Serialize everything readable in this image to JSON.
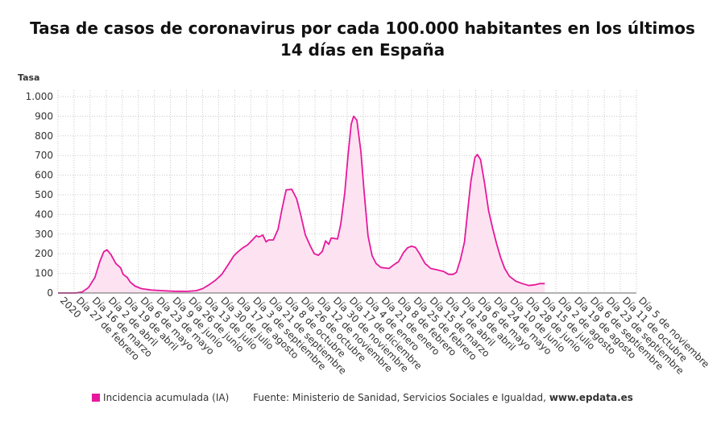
{
  "chart_data": {
    "type": "area",
    "title": "Tasa de casos de coronavirus por cada 100.000 habitantes en los últimos 14 días en España",
    "ylabel": "Tasa",
    "xlabel": "",
    "ylim": [
      0,
      1000
    ],
    "yticks": [
      0,
      100,
      200,
      300,
      400,
      500,
      600,
      700,
      800,
      900,
      1000
    ],
    "ytick_labels": [
      "0",
      "100",
      "200",
      "300",
      "400",
      "500",
      "600",
      "700",
      "800",
      "900",
      "1.000"
    ],
    "grid": true,
    "legend_position": "bottom",
    "x_tick_labels": [
      "2020",
      "Día 27 de febrero",
      "Día 16 de marzo",
      "Día 2 de abril",
      "Día 19 de abril",
      "Día 6 de mayo",
      "Día 23 de mayo",
      "Día 9 de junio",
      "Día 26 de junio",
      "Día 13 de julio",
      "Día 30 de julio",
      "Día 17 de agosto",
      "Día 3 de septiembre",
      "Día 21 de septiembre",
      "Día 8 de octubre",
      "Día 26 de octubre",
      "Día 12 de noviembre",
      "Día 30 de noviembre",
      "Día 17 de diciembre",
      "Día 4 de enero",
      "Día 21 de enero",
      "Día 8 de febrero",
      "Día 25 de febrero",
      "Día 15 de marzo",
      "Día 1 de abril",
      "Día 19 de abril",
      "Día 6 de mayo",
      "Día 24 de mayo",
      "Día 10 de junio",
      "Día 28 de junio",
      "Día 15 de julio",
      "Día 2 de agosto",
      "Día 19 de agosto",
      "Día 6 de septiembre",
      "Día 23 de septiembre",
      "Día 11 de octubre",
      "Día 5 de noviembre"
    ],
    "series": [
      {
        "name": "Incidencia acumulada (IA)",
        "color": "#e6199c",
        "fill": "#fde3f2",
        "values": [
          [
            0,
            0
          ],
          [
            1.1,
            0
          ],
          [
            1.5,
            5
          ],
          [
            1.9,
            28
          ],
          [
            2.3,
            80
          ],
          [
            2.6,
            160
          ],
          [
            2.85,
            210
          ],
          [
            3.05,
            220
          ],
          [
            3.3,
            195
          ],
          [
            3.6,
            150
          ],
          [
            3.9,
            128
          ],
          [
            4.05,
            95
          ],
          [
            4.3,
            80
          ],
          [
            4.5,
            55
          ],
          [
            4.8,
            35
          ],
          [
            5.2,
            22
          ],
          [
            5.8,
            15
          ],
          [
            6.5,
            12
          ],
          [
            7.2,
            9
          ],
          [
            8.0,
            8
          ],
          [
            8.6,
            12
          ],
          [
            9.0,
            22
          ],
          [
            9.4,
            42
          ],
          [
            9.8,
            65
          ],
          [
            10.2,
            95
          ],
          [
            10.6,
            145
          ],
          [
            10.95,
            190
          ],
          [
            11.2,
            210
          ],
          [
            11.5,
            230
          ],
          [
            11.8,
            245
          ],
          [
            12.1,
            270
          ],
          [
            12.35,
            292
          ],
          [
            12.5,
            285
          ],
          [
            12.75,
            295
          ],
          [
            12.95,
            260
          ],
          [
            13.1,
            270
          ],
          [
            13.4,
            270
          ],
          [
            13.7,
            325
          ],
          [
            13.95,
            430
          ],
          [
            14.2,
            525
          ],
          [
            14.55,
            528
          ],
          [
            14.85,
            480
          ],
          [
            15.1,
            400
          ],
          [
            15.4,
            295
          ],
          [
            15.7,
            240
          ],
          [
            15.95,
            200
          ],
          [
            16.2,
            192
          ],
          [
            16.45,
            212
          ],
          [
            16.65,
            265
          ],
          [
            16.85,
            248
          ],
          [
            17.0,
            280
          ],
          [
            17.4,
            275
          ],
          [
            17.6,
            350
          ],
          [
            17.85,
            510
          ],
          [
            18.05,
            700
          ],
          [
            18.25,
            860
          ],
          [
            18.4,
            900
          ],
          [
            18.6,
            880
          ],
          [
            18.85,
            720
          ],
          [
            19.05,
            520
          ],
          [
            19.3,
            290
          ],
          [
            19.55,
            190
          ],
          [
            19.8,
            150
          ],
          [
            20.1,
            130
          ],
          [
            20.6,
            125
          ],
          [
            20.85,
            140
          ],
          [
            21.2,
            160
          ],
          [
            21.5,
            205
          ],
          [
            21.75,
            230
          ],
          [
            22.0,
            238
          ],
          [
            22.25,
            232
          ],
          [
            22.5,
            200
          ],
          [
            22.85,
            150
          ],
          [
            23.2,
            125
          ],
          [
            23.6,
            118
          ],
          [
            24.0,
            110
          ],
          [
            24.3,
            95
          ],
          [
            24.6,
            95
          ],
          [
            24.8,
            105
          ],
          [
            25.05,
            170
          ],
          [
            25.3,
            260
          ],
          [
            25.5,
            420
          ],
          [
            25.7,
            570
          ],
          [
            25.95,
            690
          ],
          [
            26.1,
            705
          ],
          [
            26.3,
            680
          ],
          [
            26.55,
            560
          ],
          [
            26.8,
            420
          ],
          [
            27.05,
            330
          ],
          [
            27.3,
            250
          ],
          [
            27.55,
            180
          ],
          [
            27.8,
            125
          ],
          [
            28.1,
            85
          ],
          [
            28.5,
            60
          ],
          [
            28.9,
            48
          ],
          [
            29.3,
            38
          ],
          [
            29.7,
            42
          ],
          [
            30.0,
            48
          ],
          [
            30.3,
            48
          ]
        ]
      }
    ]
  },
  "legend": {
    "label": "Incidencia acumulada (IA)",
    "source": "Fuente: Ministerio de Sanidad, Servicios Sociales e Igualdad,",
    "site": "www.epdata.es"
  }
}
